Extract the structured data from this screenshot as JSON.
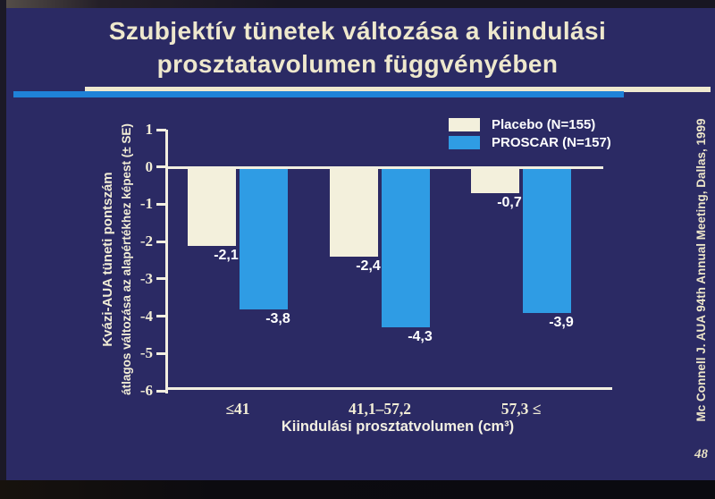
{
  "slide": {
    "title_line1": "Szubjektív tünetek változása a kiindulási",
    "title_line2": "prosztatavolumen függvényében",
    "citation": "Mc Connell J. AUA 94th Annual Meeting, Dallas, 1999",
    "page_number": "48"
  },
  "legend": [
    {
      "label": "Placebo (N=155)",
      "color": "#f3f0dc"
    },
    {
      "label": "PROSCAR (N=157)",
      "color": "#2f9ce4"
    }
  ],
  "chart_data": {
    "type": "bar",
    "title": "Szubjektív tünetek változása a kiindulási prosztatavolumen függvényében",
    "categories": [
      "≤41",
      "41,1–57,2",
      "57,3 ≤"
    ],
    "series": [
      {
        "name": "Placebo (N=155)",
        "color": "#f3f0dc",
        "values": [
          -2.1,
          -2.4,
          -0.7
        ],
        "labels": [
          "-2,1",
          "-2,4",
          "-0,7"
        ]
      },
      {
        "name": "PROSCAR (N=157)",
        "color": "#2f9ce4",
        "values": [
          -3.8,
          -4.3,
          -3.9
        ],
        "labels": [
          "-3,8",
          "-4,3",
          "-3,9"
        ]
      }
    ],
    "xlabel": "Kiindulási prosztatvolumen (cm³)",
    "ylabel_line1": "Kvázi-AUA tüneti pontszám",
    "ylabel_line2": "átlagos változása az alapértékhez képest (± SE)",
    "ylim": [
      -6,
      1
    ],
    "yticks": [
      1,
      0,
      -1,
      -2,
      -3,
      -4,
      -5,
      -6
    ],
    "grid": false,
    "legend_position": "top-right"
  },
  "colors": {
    "slide_background": "#2b2a64",
    "axis": "#f2efe0",
    "title_text": "#eee8cd",
    "value_label_text": "#ffffff",
    "divider_cream": "#efe9cf",
    "divider_blue": "#1f82d8",
    "film_edge": "#0c0b10"
  }
}
